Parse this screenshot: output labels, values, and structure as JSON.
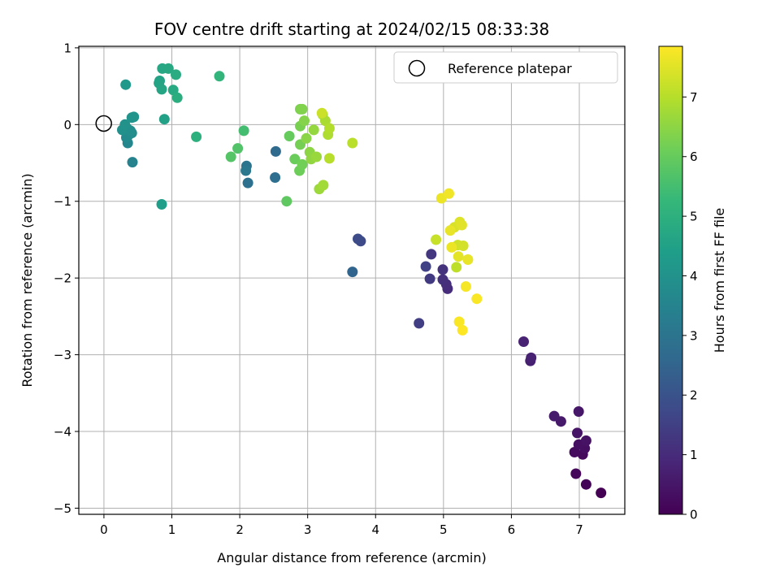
{
  "chart_data": {
    "type": "scatter",
    "title": "FOV centre drift starting at 2024/02/15 08:33:38",
    "xlabel": "Angular distance from reference (arcmin)",
    "ylabel": "Rotation from reference (arcmin)",
    "xlim": [
      -0.37,
      7.67
    ],
    "ylim": [
      -5.08,
      1.02
    ],
    "xticks": [
      0,
      1,
      2,
      3,
      4,
      5,
      6,
      7
    ],
    "yticks": [
      1,
      0,
      -1,
      -2,
      -3,
      -4,
      -5
    ],
    "ytick_labels": [
      "1",
      "0",
      "−1",
      "−2",
      "−3",
      "−4",
      "−5"
    ],
    "grid": true,
    "colormap": "viridis",
    "legend": {
      "position": "top-right",
      "entries": [
        {
          "label": "Reference platepar",
          "marker": "open-circle"
        }
      ]
    },
    "reference_point": {
      "x": 0,
      "y": 0,
      "label": "Reference platepar"
    },
    "colorbar": {
      "label": "Hours from first FF file",
      "range": [
        0,
        7.85
      ],
      "ticks": [
        0,
        1,
        2,
        3,
        4,
        5,
        6,
        7
      ]
    },
    "points": [
      {
        "x": 7.32,
        "y": -4.8,
        "c": 0.0
      },
      {
        "x": 7.1,
        "y": -4.69,
        "c": 0.1
      },
      {
        "x": 6.95,
        "y": -4.55,
        "c": 0.15
      },
      {
        "x": 7.05,
        "y": -4.3,
        "c": 0.2
      },
      {
        "x": 6.93,
        "y": -4.27,
        "c": 0.25
      },
      {
        "x": 7.08,
        "y": -4.22,
        "c": 0.3
      },
      {
        "x": 6.99,
        "y": -4.17,
        "c": 0.35
      },
      {
        "x": 7.1,
        "y": -4.12,
        "c": 0.4
      },
      {
        "x": 6.97,
        "y": -4.02,
        "c": 0.45
      },
      {
        "x": 6.99,
        "y": -3.74,
        "c": 0.5
      },
      {
        "x": 6.73,
        "y": -3.87,
        "c": 0.55
      },
      {
        "x": 6.63,
        "y": -3.8,
        "c": 0.6
      },
      {
        "x": 6.28,
        "y": -3.08,
        "c": 0.7
      },
      {
        "x": 6.29,
        "y": -3.04,
        "c": 0.75
      },
      {
        "x": 6.18,
        "y": -2.83,
        "c": 0.8
      },
      {
        "x": 5.06,
        "y": -2.14,
        "c": 1.0
      },
      {
        "x": 5.04,
        "y": -2.08,
        "c": 1.05
      },
      {
        "x": 4.99,
        "y": -2.02,
        "c": 1.1
      },
      {
        "x": 4.99,
        "y": -1.89,
        "c": 1.15
      },
      {
        "x": 4.82,
        "y": -1.69,
        "c": 1.25
      },
      {
        "x": 4.8,
        "y": -2.01,
        "c": 1.35
      },
      {
        "x": 4.64,
        "y": -2.59,
        "c": 1.45
      },
      {
        "x": 4.74,
        "y": -1.85,
        "c": 1.55
      },
      {
        "x": 3.78,
        "y": -1.52,
        "c": 1.75
      },
      {
        "x": 3.74,
        "y": -1.49,
        "c": 1.8
      },
      {
        "x": 3.66,
        "y": -1.92,
        "c": 2.5
      },
      {
        "x": 2.53,
        "y": -0.35,
        "c": 2.7
      },
      {
        "x": 2.52,
        "y": -0.69,
        "c": 2.8
      },
      {
        "x": 2.12,
        "y": -0.76,
        "c": 2.9
      },
      {
        "x": 2.1,
        "y": -0.54,
        "c": 3.0
      },
      {
        "x": 2.09,
        "y": -0.6,
        "c": 3.1
      },
      {
        "x": 0.42,
        "y": -0.49,
        "c": 3.5
      },
      {
        "x": 0.35,
        "y": -0.24,
        "c": 3.6
      },
      {
        "x": 0.33,
        "y": -0.17,
        "c": 3.7
      },
      {
        "x": 0.35,
        "y": -0.15,
        "c": 3.75
      },
      {
        "x": 0.41,
        "y": -0.11,
        "c": 3.8
      },
      {
        "x": 0.39,
        "y": -0.08,
        "c": 3.85
      },
      {
        "x": 0.34,
        "y": -0.05,
        "c": 3.9
      },
      {
        "x": 0.27,
        "y": -0.07,
        "c": 3.95
      },
      {
        "x": 0.31,
        "y": 0.0,
        "c": 4.0
      },
      {
        "x": 0.41,
        "y": 0.09,
        "c": 4.05
      },
      {
        "x": 0.44,
        "y": 0.1,
        "c": 4.1
      },
      {
        "x": 0.32,
        "y": 0.52,
        "c": 4.2
      },
      {
        "x": 0.85,
        "y": -1.04,
        "c": 4.4
      },
      {
        "x": 0.89,
        "y": 0.07,
        "c": 4.5
      },
      {
        "x": 0.82,
        "y": 0.57,
        "c": 4.55
      },
      {
        "x": 0.81,
        "y": 0.54,
        "c": 4.6
      },
      {
        "x": 0.85,
        "y": 0.46,
        "c": 4.65
      },
      {
        "x": 0.86,
        "y": 0.73,
        "c": 4.7
      },
      {
        "x": 0.95,
        "y": 0.73,
        "c": 4.75
      },
      {
        "x": 1.02,
        "y": 0.45,
        "c": 4.8
      },
      {
        "x": 1.06,
        "y": 0.65,
        "c": 4.85
      },
      {
        "x": 1.08,
        "y": 0.35,
        "c": 4.9
      },
      {
        "x": 1.36,
        "y": -0.16,
        "c": 5.0
      },
      {
        "x": 1.7,
        "y": 0.63,
        "c": 5.15
      },
      {
        "x": 2.06,
        "y": -0.08,
        "c": 5.5
      },
      {
        "x": 1.97,
        "y": -0.31,
        "c": 5.7
      },
      {
        "x": 1.87,
        "y": -0.42,
        "c": 5.75
      },
      {
        "x": 2.69,
        "y": -1.0,
        "c": 5.9
      },
      {
        "x": 2.73,
        "y": -0.15,
        "c": 6.0
      },
      {
        "x": 2.81,
        "y": -0.45,
        "c": 6.05
      },
      {
        "x": 2.88,
        "y": -0.6,
        "c": 6.1
      },
      {
        "x": 2.92,
        "y": -0.52,
        "c": 6.15
      },
      {
        "x": 2.89,
        "y": -0.26,
        "c": 6.2
      },
      {
        "x": 2.89,
        "y": -0.02,
        "c": 6.25
      },
      {
        "x": 2.89,
        "y": 0.2,
        "c": 6.3
      },
      {
        "x": 2.92,
        "y": 0.2,
        "c": 6.35
      },
      {
        "x": 2.95,
        "y": 0.05,
        "c": 6.4
      },
      {
        "x": 2.98,
        "y": -0.18,
        "c": 6.45
      },
      {
        "x": 3.03,
        "y": -0.36,
        "c": 6.5
      },
      {
        "x": 3.05,
        "y": -0.45,
        "c": 6.55
      },
      {
        "x": 3.09,
        "y": -0.07,
        "c": 6.6
      },
      {
        "x": 3.13,
        "y": -0.42,
        "c": 6.65
      },
      {
        "x": 3.17,
        "y": -0.84,
        "c": 6.7
      },
      {
        "x": 3.23,
        "y": -0.79,
        "c": 6.75
      },
      {
        "x": 3.22,
        "y": 0.13,
        "c": 6.8
      },
      {
        "x": 3.26,
        "y": 0.05,
        "c": 6.85
      },
      {
        "x": 3.3,
        "y": -0.13,
        "c": 6.9
      },
      {
        "x": 3.32,
        "y": -0.05,
        "c": 6.95
      },
      {
        "x": 3.32,
        "y": -0.44,
        "c": 7.0
      },
      {
        "x": 3.66,
        "y": -0.24,
        "c": 7.05
      },
      {
        "x": 3.21,
        "y": 0.15,
        "c": 7.25
      },
      {
        "x": 4.89,
        "y": -1.5,
        "c": 7.2
      },
      {
        "x": 5.19,
        "y": -1.86,
        "c": 7.1
      },
      {
        "x": 5.21,
        "y": -1.57,
        "c": 7.3
      },
      {
        "x": 5.29,
        "y": -1.58,
        "c": 7.35
      },
      {
        "x": 5.16,
        "y": -1.34,
        "c": 7.4
      },
      {
        "x": 5.24,
        "y": -1.27,
        "c": 7.45
      },
      {
        "x": 5.27,
        "y": -1.31,
        "c": 7.5
      },
      {
        "x": 5.22,
        "y": -1.72,
        "c": 7.55
      },
      {
        "x": 5.36,
        "y": -1.76,
        "c": 7.6
      },
      {
        "x": 5.1,
        "y": -1.38,
        "c": 7.6
      },
      {
        "x": 5.12,
        "y": -1.6,
        "c": 7.65
      },
      {
        "x": 4.97,
        "y": -0.96,
        "c": 7.65
      },
      {
        "x": 5.08,
        "y": -0.9,
        "c": 7.7
      },
      {
        "x": 5.33,
        "y": -2.11,
        "c": 7.75
      },
      {
        "x": 5.49,
        "y": -2.27,
        "c": 7.8
      },
      {
        "x": 5.23,
        "y": -2.57,
        "c": 7.8
      },
      {
        "x": 5.28,
        "y": -2.68,
        "c": 7.85
      }
    ]
  }
}
